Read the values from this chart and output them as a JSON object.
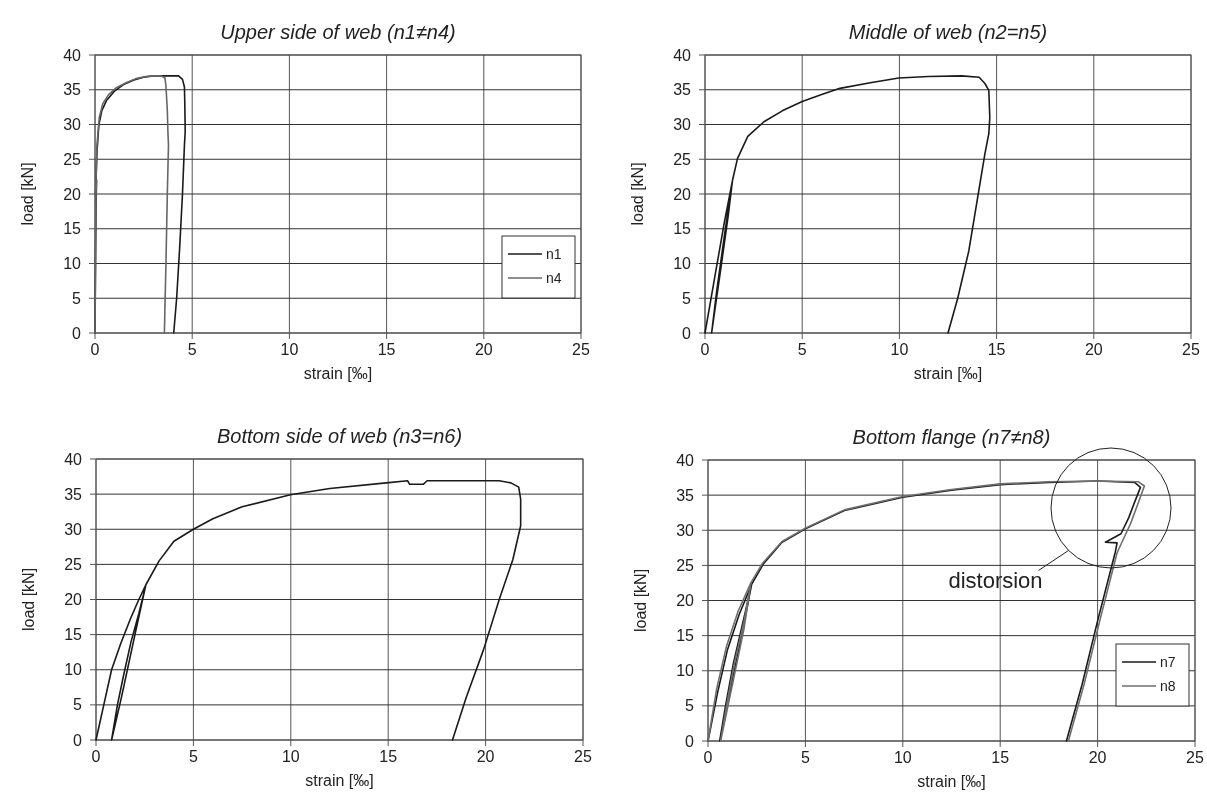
{
  "chart_data": [
    {
      "type": "line",
      "title": "Upper side of web (n1≠n4)",
      "xlabel": "strain [‰]",
      "ylabel": "load [kN]",
      "xlim": [
        0,
        25
      ],
      "xticks": [
        0,
        5,
        10,
        15,
        20,
        25
      ],
      "ylim": [
        0,
        40
      ],
      "yticks": [
        0,
        5,
        10,
        15,
        20,
        25,
        30,
        35,
        40
      ],
      "grid": true,
      "legend": "bottom right",
      "series": [
        {
          "name": "n1",
          "color": "#1a1a1a",
          "x": [
            0,
            0.05,
            0.08,
            0.03,
            0.1,
            0.2,
            0.35,
            0.6,
            1,
            1.5,
            2,
            2.5,
            3,
            3.5,
            4,
            4.3,
            4.5,
            4.6,
            4.62,
            4.64,
            4.6,
            4.5,
            4.35,
            4.2,
            4.05
          ],
          "values": [
            0,
            18,
            22,
            20,
            26,
            30,
            32,
            33.5,
            34.8,
            35.8,
            36.4,
            36.8,
            37,
            37,
            37,
            37,
            36.5,
            35.4,
            33,
            29,
            27,
            20,
            12,
            5,
            0
          ]
        },
        {
          "name": "n4",
          "color": "#666666",
          "x": [
            0,
            0.04,
            0.07,
            0.03,
            0.1,
            0.22,
            0.4,
            0.7,
            1.1,
            1.6,
            2.1,
            2.6,
            3,
            3.4,
            3.6,
            3.65,
            3.72,
            3.75,
            3.78,
            3.72,
            3.65,
            3.6,
            3.57
          ],
          "values": [
            0,
            18,
            22,
            20,
            27,
            31,
            33,
            34.3,
            35.3,
            36,
            36.6,
            36.9,
            37,
            37,
            36.7,
            35.5,
            32,
            29,
            27,
            20,
            10,
            4,
            0
          ]
        }
      ]
    },
    {
      "type": "line",
      "title": "Middle of web (n2=n5)",
      "xlabel": "strain [‰]",
      "ylabel": "load [kN]",
      "xlim": [
        0,
        25
      ],
      "xticks": [
        0,
        5,
        10,
        15,
        20,
        25
      ],
      "ylim": [
        0,
        40
      ],
      "yticks": [
        0,
        5,
        10,
        15,
        20,
        25,
        30,
        35,
        40
      ],
      "grid": true,
      "series": [
        {
          "color": "#1a1a1a",
          "x": [
            0,
            0.5,
            1,
            1.41,
            1.0,
            0.6,
            0.34,
            0.8,
            1.2,
            1.41,
            1.67,
            2.2,
            3.03,
            4,
            5,
            6,
            6.94,
            8.5,
            9.97,
            11.5,
            13.2,
            14.1,
            14.4,
            14.6,
            14.65,
            14.6,
            14.4,
            13.57,
            13,
            12.5
          ],
          "values": [
            0,
            8,
            16,
            21.9,
            14,
            6,
            0,
            9,
            17,
            21.9,
            25.1,
            28.3,
            30.4,
            32,
            33.3,
            34.3,
            35.2,
            36,
            36.7,
            36.9,
            37,
            36.8,
            35.9,
            34.9,
            31,
            28.7,
            25.8,
            11.8,
            5,
            0
          ]
        }
      ]
    },
    {
      "type": "line",
      "title": "Bottom side of web (n3=n6)",
      "xlabel": "strain [‰]",
      "ylabel": "load [kN]",
      "xlim": [
        0,
        25
      ],
      "xticks": [
        0,
        5,
        10,
        15,
        20,
        25
      ],
      "ylim": [
        0,
        40
      ],
      "yticks": [
        0,
        5,
        10,
        15,
        20,
        25,
        30,
        35,
        40
      ],
      "grid": true,
      "series": [
        {
          "color": "#1a1a1a",
          "x": [
            0,
            0.4,
            0.8,
            1.28,
            1.79,
            2.2,
            2.56,
            2.2,
            1.8,
            1.4,
            1.1,
            0.8,
            1.3,
            2,
            2.56,
            3.24,
            4,
            5,
            6,
            7.5,
            9.98,
            12,
            14.9,
            16,
            16.1,
            16.8,
            17,
            18.5,
            20.7,
            21.3,
            21.7,
            21.8,
            21.8,
            21.4,
            20.7,
            19.9,
            19,
            18.3
          ],
          "values": [
            0,
            5,
            10,
            13.8,
            17.4,
            20,
            22.1,
            18,
            14,
            9,
            5,
            0,
            6,
            15,
            22.1,
            25.5,
            28.3,
            30,
            31.5,
            33.2,
            34.9,
            35.8,
            36.6,
            36.9,
            36.4,
            36.4,
            36.9,
            36.9,
            36.9,
            36.6,
            36,
            34.3,
            30.5,
            25.7,
            20,
            12.9,
            6,
            0
          ]
        }
      ]
    },
    {
      "type": "line",
      "title": "Bottom flange (n7≠n8)",
      "xlabel": "strain [‰]",
      "ylabel": "load [kN]",
      "xlim": [
        0,
        25
      ],
      "xticks": [
        0,
        5,
        10,
        15,
        20,
        25
      ],
      "ylim": [
        0,
        40
      ],
      "yticks": [
        0,
        5,
        10,
        15,
        20,
        25,
        30,
        35,
        40
      ],
      "grid": true,
      "legend": "bottom right",
      "annotations": [
        "distorsion"
      ],
      "series": [
        {
          "name": "n7",
          "color": "#1a1a1a",
          "x": [
            0,
            0.5,
            1,
            1.6,
            2.24,
            1.8,
            1.3,
            0.9,
            0.6,
            1.2,
            1.8,
            2.24,
            2.84,
            3.8,
            5,
            7,
            10,
            12.5,
            15,
            17.5,
            20,
            21.9,
            22.2,
            21.9,
            21.6,
            21.2,
            20.4,
            21.0,
            20.9,
            20,
            19.2,
            18.4
          ],
          "values": [
            0,
            7,
            13,
            18,
            22.3,
            17,
            11,
            5,
            0,
            8,
            16,
            22.3,
            25.2,
            28.3,
            30.2,
            32.8,
            34.7,
            35.7,
            36.5,
            36.8,
            37,
            36.8,
            36.1,
            34,
            31.8,
            29.5,
            28.3,
            28.2,
            26.8,
            17.1,
            8,
            0
          ]
        },
        {
          "name": "n8",
          "color": "#6e6e6e",
          "x": [
            0,
            0.45,
            0.95,
            1.55,
            2.2,
            1.85,
            1.35,
            0.95,
            0.65,
            1.25,
            1.85,
            2.2,
            2.8,
            3.8,
            5,
            7,
            10,
            12.5,
            15,
            17.5,
            20,
            22.1,
            22.4,
            22.1,
            21.7,
            21.0,
            20.1,
            19.3,
            18.5
          ],
          "values": [
            0,
            7.5,
            13.5,
            18.5,
            22.5,
            17,
            11,
            5,
            0,
            8,
            16,
            22.5,
            25.3,
            28.4,
            30.3,
            32.9,
            34.8,
            35.8,
            36.6,
            36.9,
            37,
            36.9,
            36.3,
            34,
            31,
            26.8,
            17,
            8,
            0
          ]
        }
      ]
    }
  ]
}
